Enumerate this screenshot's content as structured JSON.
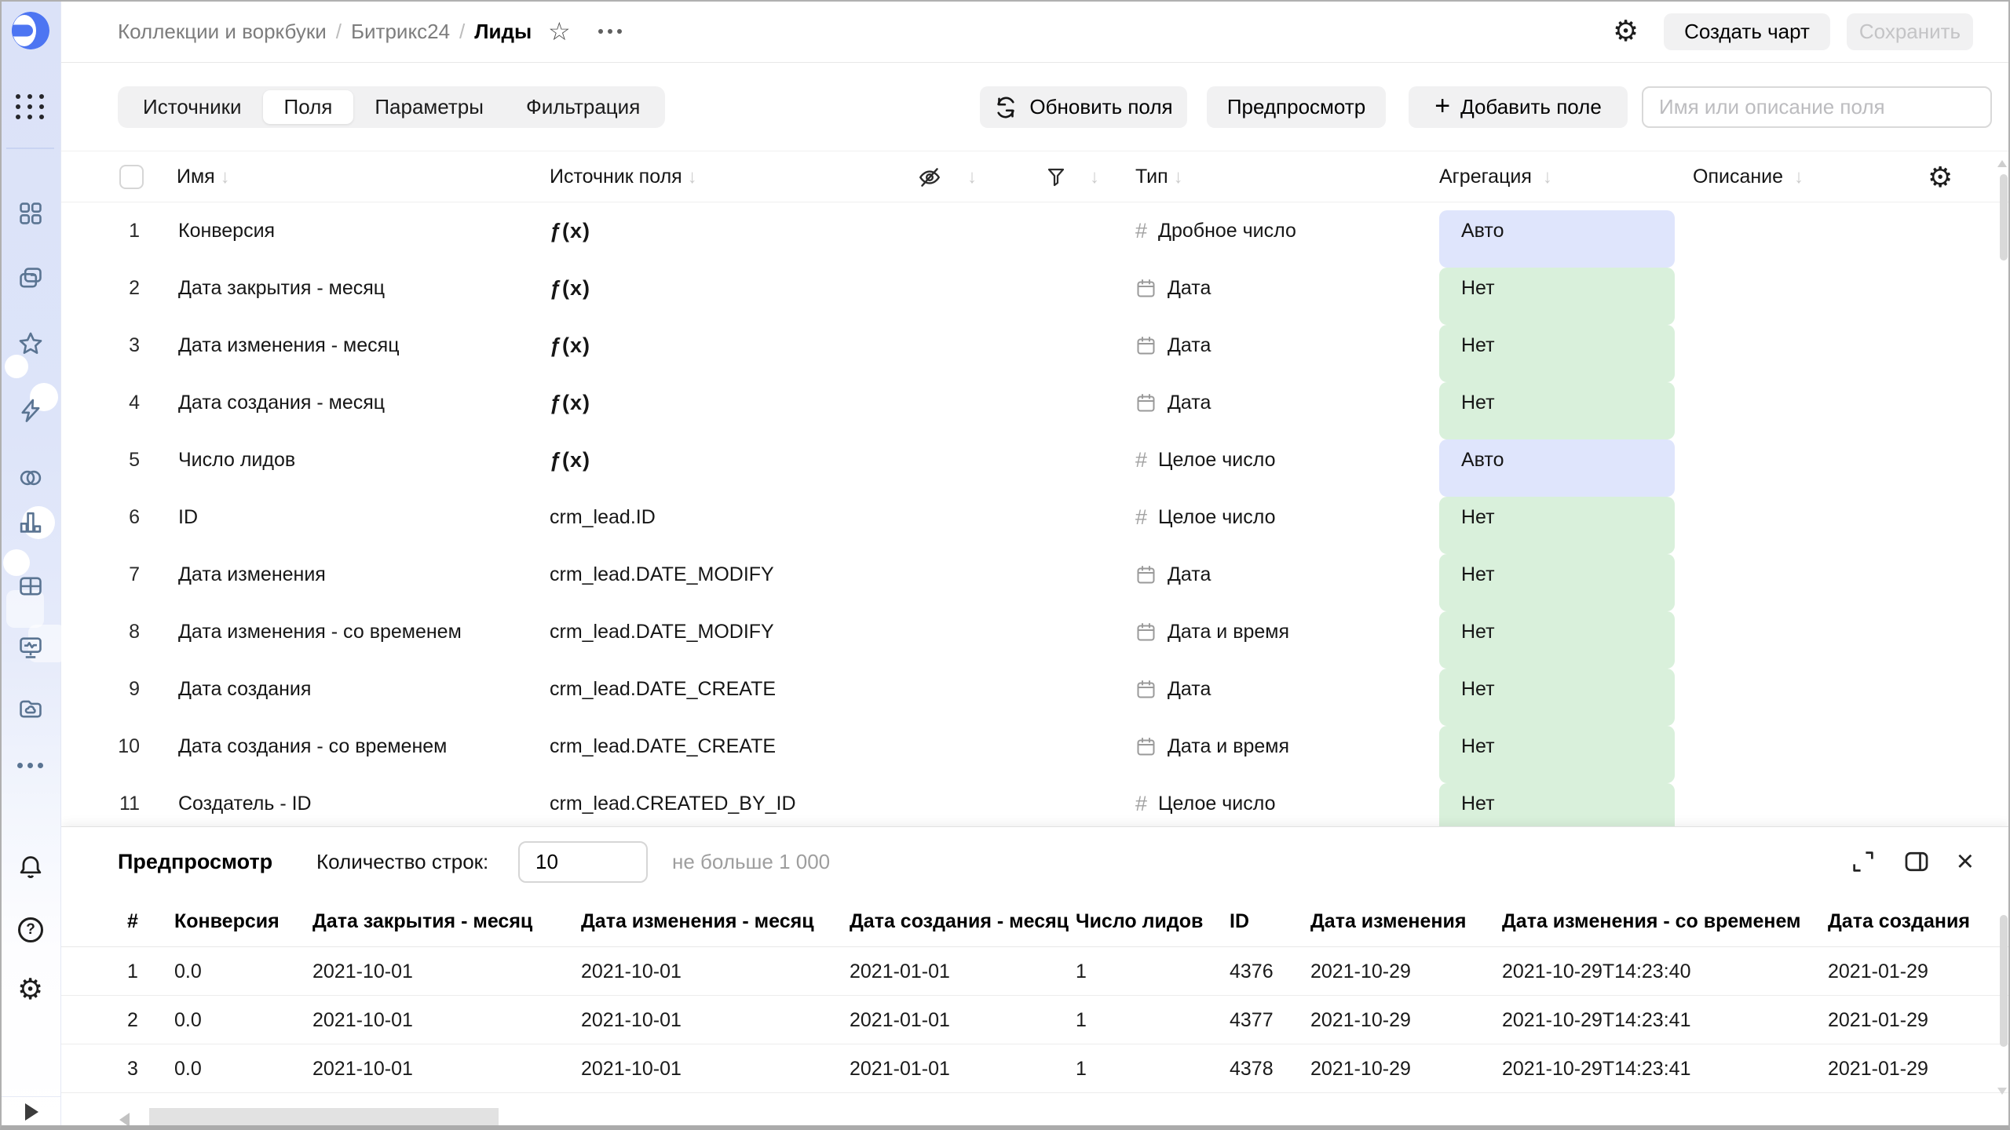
{
  "breadcrumbs": {
    "items": [
      "Коллекции и воркбуки",
      "Битрикс24",
      "Лиды"
    ],
    "separator": "/"
  },
  "window_actions": {
    "create_chart": "Создать чарт",
    "save": "Сохранить"
  },
  "tabs": [
    {
      "label": "Источники",
      "active": false
    },
    {
      "label": "Поля",
      "active": true
    },
    {
      "label": "Параметры",
      "active": false
    },
    {
      "label": "Фильтрация",
      "active": false
    }
  ],
  "toolbar": {
    "refresh_label": "Обновить поля",
    "preview_label": "Предпросмотр",
    "add_field_label": "Добавить поле",
    "search_placeholder": "Имя или описание поля"
  },
  "fields_table": {
    "header": {
      "name": "Имя",
      "source": "Источник поля",
      "type": "Тип",
      "aggregation": "Агрегация",
      "description": "Описание"
    },
    "sort_arrow": "↓",
    "formula_icon_text": "ƒ(x)",
    "number_icon_text": "#",
    "rows": [
      {
        "num": "1",
        "name": "Конверсия",
        "formula": true,
        "source": "",
        "type": "Дробное число",
        "type_kind": "number",
        "agg": "Авто",
        "agg_kind": "auto"
      },
      {
        "num": "2",
        "name": "Дата закрытия - месяц",
        "formula": true,
        "source": "",
        "type": "Дата",
        "type_kind": "date",
        "agg": "Нет",
        "agg_kind": "none"
      },
      {
        "num": "3",
        "name": "Дата изменения - месяц",
        "formula": true,
        "source": "",
        "type": "Дата",
        "type_kind": "date",
        "agg": "Нет",
        "agg_kind": "none"
      },
      {
        "num": "4",
        "name": "Дата создания - месяц",
        "formula": true,
        "source": "",
        "type": "Дата",
        "type_kind": "date",
        "agg": "Нет",
        "agg_kind": "none"
      },
      {
        "num": "5",
        "name": "Число лидов",
        "formula": true,
        "source": "",
        "type": "Целое число",
        "type_kind": "number",
        "agg": "Авто",
        "agg_kind": "auto"
      },
      {
        "num": "6",
        "name": "ID",
        "formula": false,
        "source": "crm_lead.ID",
        "type": "Целое число",
        "type_kind": "number",
        "agg": "Нет",
        "agg_kind": "none"
      },
      {
        "num": "7",
        "name": "Дата изменения",
        "formula": false,
        "source": "crm_lead.DATE_MODIFY",
        "type": "Дата",
        "type_kind": "date",
        "agg": "Нет",
        "agg_kind": "none"
      },
      {
        "num": "8",
        "name": "Дата изменения - со временем",
        "formula": false,
        "source": "crm_lead.DATE_MODIFY",
        "type": "Дата и время",
        "type_kind": "date",
        "agg": "Нет",
        "agg_kind": "none"
      },
      {
        "num": "9",
        "name": "Дата создания",
        "formula": false,
        "source": "crm_lead.DATE_CREATE",
        "type": "Дата",
        "type_kind": "date",
        "agg": "Нет",
        "agg_kind": "none"
      },
      {
        "num": "10",
        "name": "Дата создания - со временем",
        "formula": false,
        "source": "crm_lead.DATE_CREATE",
        "type": "Дата и время",
        "type_kind": "date",
        "agg": "Нет",
        "agg_kind": "none"
      },
      {
        "num": "11",
        "name": "Создатель - ID",
        "formula": false,
        "source": "crm_lead.CREATED_BY_ID",
        "type": "Целое число",
        "type_kind": "number",
        "agg": "Нет",
        "agg_kind": "none"
      }
    ]
  },
  "preview": {
    "title": "Предпросмотр",
    "rows_label": "Количество строк:",
    "rows_value": "10",
    "rows_hint": "не больше 1 000",
    "table": {
      "headers": [
        "#",
        "Конверсия",
        "Дата закрытия - месяц",
        "Дата изменения - месяц",
        "Дата создания - месяц",
        "Число лидов",
        "ID",
        "Дата изменения",
        "Дата изменения - со временем",
        "Дата создания"
      ],
      "rows": [
        [
          "1",
          "0.0",
          "2021-10-01",
          "2021-10-01",
          "2021-01-01",
          "1",
          "4376",
          "2021-10-29",
          "2021-10-29T14:23:40",
          "2021-01-29"
        ],
        [
          "2",
          "0.0",
          "2021-10-01",
          "2021-10-01",
          "2021-01-01",
          "1",
          "4377",
          "2021-10-29",
          "2021-10-29T14:23:41",
          "2021-01-29"
        ],
        [
          "3",
          "0.0",
          "2021-10-01",
          "2021-10-01",
          "2021-01-01",
          "1",
          "4378",
          "2021-10-29",
          "2021-10-29T14:23:41",
          "2021-01-29"
        ]
      ]
    }
  },
  "colors": {
    "logo_blue": "#4d75f2",
    "badge_auto_bg": "#dfe5fc",
    "badge_none_bg": "#d9f0db",
    "sidebar_icon": "#5a7492",
    "button_bg": "#f1f1f2"
  }
}
